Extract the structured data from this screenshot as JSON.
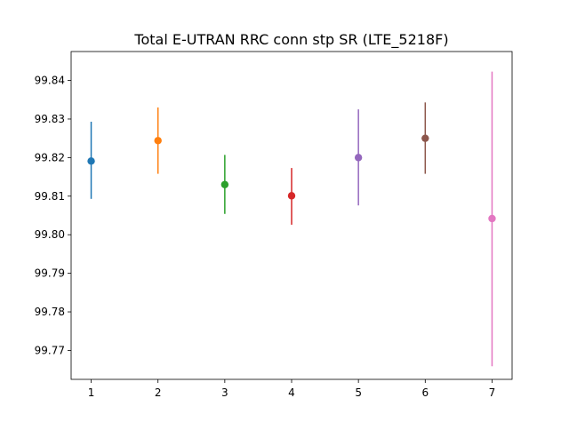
{
  "chart_data": {
    "type": "scatter",
    "title": "Total E-UTRAN RRC conn stp SR (LTE_5218F)",
    "xlabel": "",
    "ylabel": "",
    "xlim": [
      0.7,
      7.3
    ],
    "ylim": [
      99.7625,
      99.8475
    ],
    "grid": false,
    "legend": "none",
    "x_ticks": [
      1,
      2,
      3,
      4,
      5,
      6,
      7
    ],
    "y_ticks": [
      99.77,
      99.78,
      99.79,
      99.8,
      99.81,
      99.82,
      99.83,
      99.84
    ],
    "y_tick_labels": [
      "99.77",
      "99.78",
      "99.79",
      "99.80",
      "99.81",
      "99.82",
      "99.83",
      "99.84"
    ],
    "points": [
      {
        "x": 1,
        "y": 99.8191,
        "low": 99.8093,
        "high": 99.8293,
        "color": "#1f77b4"
      },
      {
        "x": 2,
        "y": 99.8244,
        "low": 99.8158,
        "high": 99.833,
        "color": "#ff7f0e"
      },
      {
        "x": 3,
        "y": 99.813,
        "low": 99.8054,
        "high": 99.8207,
        "color": "#2ca02c"
      },
      {
        "x": 4,
        "y": 99.8101,
        "low": 99.8026,
        "high": 99.8173,
        "color": "#d62728"
      },
      {
        "x": 5,
        "y": 99.82,
        "low": 99.8076,
        "high": 99.8325,
        "color": "#9467bd"
      },
      {
        "x": 6,
        "y": 99.825,
        "low": 99.8158,
        "high": 99.8343,
        "color": "#8c564b"
      },
      {
        "x": 7,
        "y": 99.8042,
        "low": 99.7659,
        "high": 99.8423,
        "color": "#e377c2"
      }
    ]
  }
}
